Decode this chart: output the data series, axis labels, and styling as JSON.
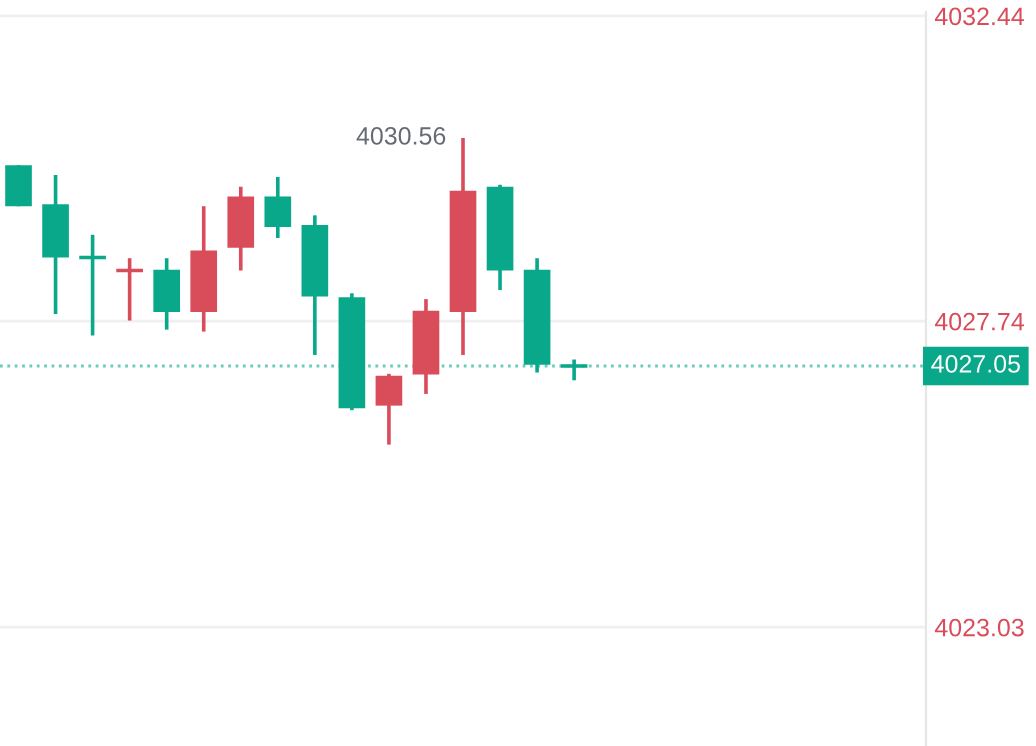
{
  "chart_data": {
    "type": "candlestick",
    "categories": [
      null,
      null,
      null,
      null,
      null,
      null,
      null,
      null,
      null,
      null,
      null,
      null,
      null,
      null,
      null,
      null,
      null,
      null,
      null,
      null,
      null,
      null,
      null,
      null,
      null
    ],
    "ohlc": [
      [
        4030.14,
        4030.14,
        4029.51,
        4029.51
      ],
      [
        4029.54,
        4029.99,
        4027.85,
        4028.72
      ],
      [
        4028.72,
        4029.07,
        4027.52,
        4028.72
      ],
      [
        4028.52,
        4028.71,
        4027.75,
        4028.52
      ],
      [
        4028.53,
        4028.71,
        4027.61,
        4027.88
      ],
      [
        4027.88,
        4029.51,
        4027.58,
        4028.83
      ],
      [
        4028.87,
        4029.81,
        4028.52,
        4029.66
      ],
      [
        4029.66,
        4029.96,
        4029.02,
        4029.19
      ],
      [
        4029.22,
        4029.37,
        4027.22,
        4028.12
      ],
      [
        4028.11,
        4028.17,
        4026.37,
        4026.4
      ],
      [
        4026.44,
        4026.93,
        4025.84,
        4026.9
      ],
      [
        4026.92,
        4028.08,
        4026.62,
        4027.9
      ],
      [
        4027.88,
        4030.56,
        4027.22,
        4029.75
      ],
      [
        4029.81,
        4029.84,
        4028.22,
        4028.52
      ],
      [
        4028.53,
        4028.71,
        4026.95,
        4027.07
      ],
      [
        4027.05,
        4027.15,
        4026.83,
        4027.05
      ],
      null,
      null,
      null,
      null,
      null,
      null,
      null,
      null,
      null
    ],
    "colors": [
      "#0aa88a",
      "#0aa88a",
      "#0aa88a",
      "#d94c5a",
      "#0aa88a",
      "#d94c5a",
      "#d94c5a",
      "#0aa88a",
      "#0aa88a",
      "#0aa88a",
      "#d94c5a",
      "#d94c5a",
      "#d94c5a",
      "#0aa88a",
      "#0aa88a",
      "#0aa88a",
      null,
      null,
      null,
      null,
      null,
      null,
      null,
      null,
      null
    ],
    "ylim": [
      4021.2,
      4032.5
    ],
    "yticks": [
      4023.03,
      4027.74,
      4032.44
    ],
    "tick_labels": "y",
    "grid": "y",
    "ref_lines": [
      {
        "axis": "y",
        "value": 4027.05,
        "label": "4027.05",
        "color": "#0aa88a",
        "line_style": "dotted"
      }
    ],
    "annotations": [
      "4030.56"
    ]
  }
}
